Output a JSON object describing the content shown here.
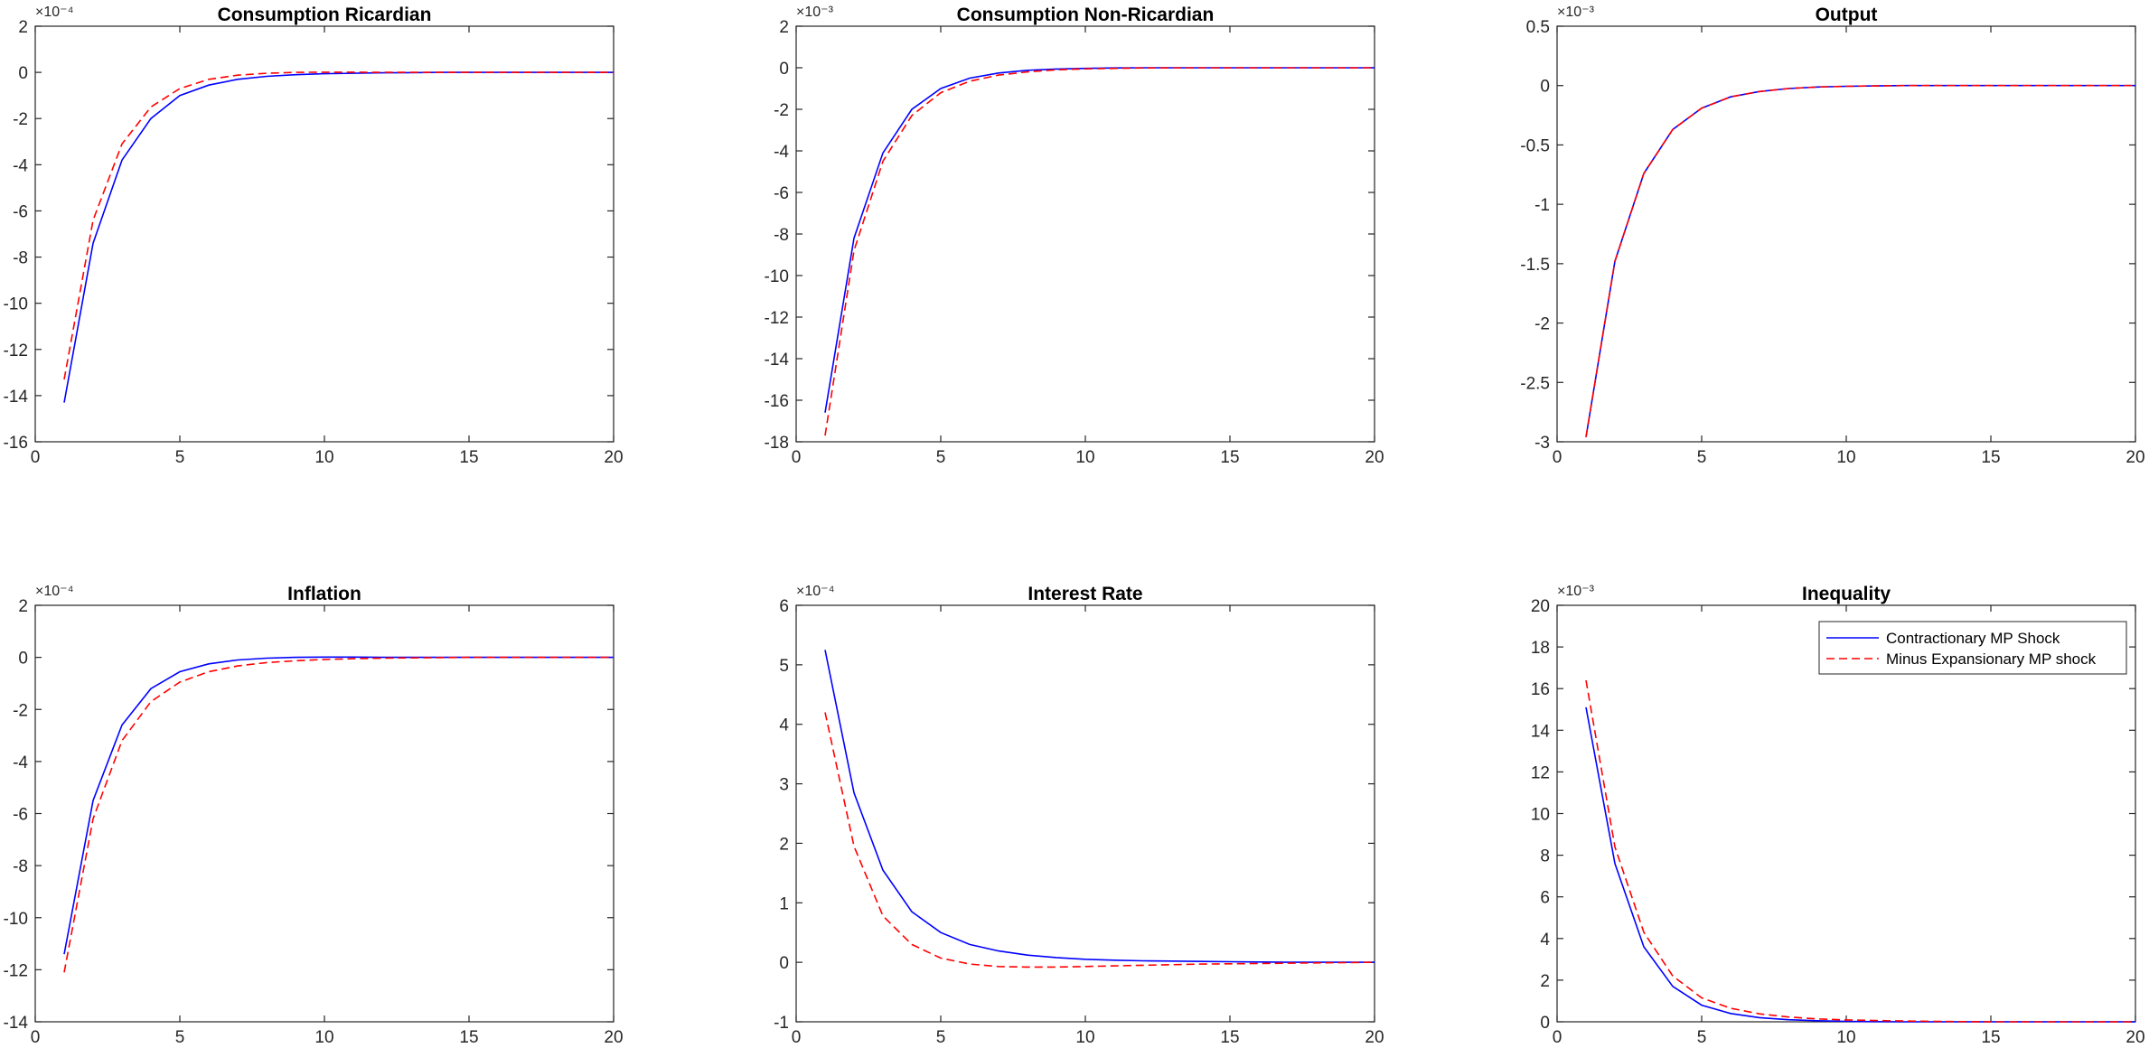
{
  "colors": {
    "series1": "#0000ff",
    "series2": "#ff0000",
    "axis": "#262626",
    "background": "#ffffff"
  },
  "legend": {
    "placement": "top-right",
    "entries": [
      "Contractionary MP Shock",
      "Minus Expansionary MP shock"
    ]
  },
  "chart_data": [
    {
      "type": "line",
      "title": "Consumption Ricardian",
      "exponent_label": "×10⁻⁴",
      "xlim": [
        0,
        20
      ],
      "ylim": [
        -16,
        2
      ],
      "xticks": [
        0,
        5,
        10,
        15,
        20
      ],
      "yticks": [
        -16,
        -14,
        -12,
        -10,
        -8,
        -6,
        -4,
        -2,
        0,
        2
      ],
      "grid": false,
      "x": [
        1,
        2,
        3,
        4,
        5,
        6,
        7,
        8,
        9,
        10,
        11,
        12,
        13,
        14,
        15,
        16,
        17,
        18,
        19,
        20
      ],
      "series": [
        {
          "name": "Contractionary MP Shock",
          "style": "solid",
          "values": [
            -14.3,
            -7.4,
            -3.8,
            -2.0,
            -1.0,
            -0.55,
            -0.3,
            -0.17,
            -0.1,
            -0.06,
            -0.04,
            -0.02,
            -0.01,
            0,
            0,
            0,
            0,
            0,
            0,
            0
          ]
        },
        {
          "name": "Minus Expansionary MP shock",
          "style": "dashed",
          "values": [
            -13.3,
            -6.4,
            -3.1,
            -1.5,
            -0.7,
            -0.3,
            -0.12,
            -0.04,
            0,
            0.01,
            0.01,
            0,
            0,
            0,
            0,
            0,
            0,
            0,
            0,
            0
          ]
        }
      ]
    },
    {
      "type": "line",
      "title": "Consumption Non-Ricardian",
      "exponent_label": "×10⁻³",
      "xlim": [
        0,
        20
      ],
      "ylim": [
        -18,
        2
      ],
      "xticks": [
        0,
        5,
        10,
        15,
        20
      ],
      "yticks": [
        -18,
        -16,
        -14,
        -12,
        -10,
        -8,
        -6,
        -4,
        -2,
        0,
        2
      ],
      "grid": false,
      "x": [
        1,
        2,
        3,
        4,
        5,
        6,
        7,
        8,
        9,
        10,
        11,
        12,
        13,
        14,
        15,
        16,
        17,
        18,
        19,
        20
      ],
      "series": [
        {
          "name": "Contractionary MP Shock",
          "style": "solid",
          "values": [
            -16.6,
            -8.2,
            -4.1,
            -2.0,
            -1.0,
            -0.5,
            -0.25,
            -0.12,
            -0.06,
            -0.03,
            -0.01,
            0,
            0,
            0,
            0,
            0,
            0,
            0,
            0,
            0
          ]
        },
        {
          "name": "Minus Expansionary MP shock",
          "style": "dashed",
          "values": [
            -17.7,
            -8.8,
            -4.5,
            -2.3,
            -1.2,
            -0.65,
            -0.35,
            -0.2,
            -0.1,
            -0.05,
            -0.03,
            -0.01,
            0,
            0,
            0,
            0,
            0,
            0,
            0,
            0
          ]
        }
      ]
    },
    {
      "type": "line",
      "title": "Output",
      "exponent_label": "×10⁻³",
      "xlim": [
        0,
        20
      ],
      "ylim": [
        -3,
        0.5
      ],
      "xticks": [
        0,
        5,
        10,
        15,
        20
      ],
      "yticks": [
        -3,
        -2.5,
        -2,
        -1.5,
        -1,
        -0.5,
        0,
        0.5
      ],
      "grid": false,
      "x": [
        1,
        2,
        3,
        4,
        5,
        6,
        7,
        8,
        9,
        10,
        11,
        12,
        13,
        14,
        15,
        16,
        17,
        18,
        19,
        20
      ],
      "series": [
        {
          "name": "Contractionary MP Shock",
          "style": "solid",
          "values": [
            -2.96,
            -1.48,
            -0.74,
            -0.37,
            -0.19,
            -0.095,
            -0.05,
            -0.025,
            -0.012,
            -0.006,
            -0.003,
            0,
            0,
            0,
            0,
            0,
            0,
            0,
            0,
            0
          ]
        },
        {
          "name": "Minus Expansionary MP shock",
          "style": "dashed",
          "values": [
            -2.96,
            -1.48,
            -0.74,
            -0.37,
            -0.19,
            -0.095,
            -0.05,
            -0.025,
            -0.012,
            -0.006,
            -0.003,
            0,
            0,
            0,
            0,
            0,
            0,
            0,
            0,
            0
          ]
        }
      ]
    },
    {
      "type": "line",
      "title": "Inflation",
      "exponent_label": "×10⁻⁴",
      "xlim": [
        0,
        20
      ],
      "ylim": [
        -14,
        2
      ],
      "xticks": [
        0,
        5,
        10,
        15,
        20
      ],
      "yticks": [
        -14,
        -12,
        -10,
        -8,
        -6,
        -4,
        -2,
        0,
        2
      ],
      "grid": false,
      "x": [
        1,
        2,
        3,
        4,
        5,
        6,
        7,
        8,
        9,
        10,
        11,
        12,
        13,
        14,
        15,
        16,
        17,
        18,
        19,
        20
      ],
      "series": [
        {
          "name": "Contractionary MP Shock",
          "style": "solid",
          "values": [
            -11.4,
            -5.5,
            -2.6,
            -1.2,
            -0.55,
            -0.25,
            -0.1,
            -0.03,
            0,
            0.01,
            0.01,
            0,
            0,
            0,
            0,
            0,
            0,
            0,
            0,
            0
          ]
        },
        {
          "name": "Minus Expansionary MP shock",
          "style": "dashed",
          "values": [
            -12.1,
            -6.2,
            -3.2,
            -1.7,
            -0.95,
            -0.55,
            -0.33,
            -0.2,
            -0.13,
            -0.08,
            -0.05,
            -0.03,
            -0.02,
            -0.01,
            0,
            0,
            0,
            0,
            0,
            0
          ]
        }
      ]
    },
    {
      "type": "line",
      "title": "Interest Rate",
      "exponent_label": "×10⁻⁴",
      "xlim": [
        0,
        20
      ],
      "ylim": [
        -1,
        6
      ],
      "xticks": [
        0,
        5,
        10,
        15,
        20
      ],
      "yticks": [
        -1,
        0,
        1,
        2,
        3,
        4,
        5,
        6
      ],
      "grid": false,
      "x": [
        1,
        2,
        3,
        4,
        5,
        6,
        7,
        8,
        9,
        10,
        11,
        12,
        13,
        14,
        15,
        16,
        17,
        18,
        19,
        20
      ],
      "series": [
        {
          "name": "Contractionary MP Shock",
          "style": "solid",
          "values": [
            5.25,
            2.85,
            1.55,
            0.85,
            0.5,
            0.3,
            0.19,
            0.12,
            0.08,
            0.05,
            0.035,
            0.025,
            0.02,
            0.015,
            0.01,
            0.005,
            0,
            0,
            0,
            0
          ]
        },
        {
          "name": "Minus Expansionary MP shock",
          "style": "dashed",
          "values": [
            4.2,
            1.95,
            0.78,
            0.3,
            0.07,
            -0.03,
            -0.07,
            -0.08,
            -0.08,
            -0.07,
            -0.06,
            -0.05,
            -0.04,
            -0.03,
            -0.025,
            -0.02,
            -0.015,
            -0.01,
            -0.005,
            0
          ]
        }
      ]
    },
    {
      "type": "line",
      "title": "Inequality",
      "exponent_label": "×10⁻³",
      "xlim": [
        0,
        20
      ],
      "ylim": [
        0,
        20
      ],
      "xticks": [
        0,
        5,
        10,
        15,
        20
      ],
      "yticks": [
        0,
        2,
        4,
        6,
        8,
        10,
        12,
        14,
        16,
        18,
        20
      ],
      "grid": false,
      "legend": true,
      "x": [
        1,
        2,
        3,
        4,
        5,
        6,
        7,
        8,
        9,
        10,
        11,
        12,
        13,
        14,
        15,
        16,
        17,
        18,
        19,
        20
      ],
      "series": [
        {
          "name": "Contractionary MP Shock",
          "style": "solid",
          "values": [
            15.1,
            7.6,
            3.6,
            1.7,
            0.8,
            0.4,
            0.2,
            0.1,
            0.05,
            0.02,
            0.01,
            0,
            0,
            0,
            0,
            0,
            0,
            0,
            0,
            0
          ]
        },
        {
          "name": "Minus Expansionary MP shock",
          "style": "dashed",
          "values": [
            16.4,
            8.4,
            4.3,
            2.2,
            1.15,
            0.65,
            0.38,
            0.23,
            0.14,
            0.09,
            0.06,
            0.04,
            0.02,
            0.01,
            0,
            0,
            0,
            0,
            0,
            0
          ]
        }
      ]
    }
  ]
}
